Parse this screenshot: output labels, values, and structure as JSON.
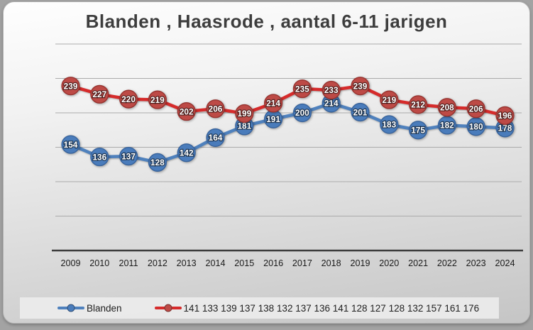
{
  "title": "Blanden , Haasrode , aantal 6-11 jarigen",
  "chart_data": {
    "type": "line",
    "title": "Blanden , Haasrode , aantal 6-11 jarigen",
    "categories": [
      "2009",
      "2010",
      "2011",
      "2012",
      "2013",
      "2014",
      "2015",
      "2016",
      "2017",
      "2018",
      "2019",
      "2020",
      "2021",
      "2022",
      "2023",
      "2024"
    ],
    "series": [
      {
        "name": "Blanden",
        "marker_color": "#4a7cbb",
        "marker_border": "#38639c",
        "line_color": "#4f81bd",
        "values": [
          154,
          136,
          137,
          128,
          142,
          164,
          181,
          191,
          200,
          214,
          201,
          183,
          175,
          182,
          180,
          178
        ]
      },
      {
        "name": "141 133 139 137 138 132 137 136 141 128 127 128 132 157 161 176",
        "marker_color": "#bd4a46",
        "marker_border": "#97332f",
        "line_color": "#d62b2b",
        "values": [
          239,
          227,
          220,
          219,
          202,
          206,
          199,
          214,
          235,
          233,
          239,
          219,
          212,
          208,
          206,
          196
        ]
      }
    ],
    "xlabel": "",
    "ylabel": "",
    "ylim": [
      0,
      300
    ],
    "gridline_step": 50,
    "grid": true,
    "y_tick_labels_visible": false,
    "data_labels": true,
    "legend_position": "bottom"
  },
  "colors": {
    "grid_line": "#ababab",
    "axis_line": "#3c3c3c",
    "tick_label": "#1c1c1c",
    "data_label_text": "#ffffff",
    "title_text": "#3d3d3d"
  }
}
